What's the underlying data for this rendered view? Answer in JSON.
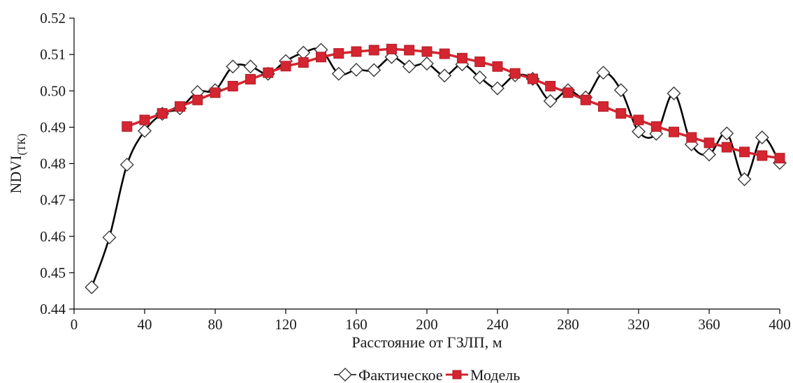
{
  "chart_data": {
    "type": "line",
    "xlabel": "Расстояние от ГЗЛП, м",
    "ylabel_main": "NDVI",
    "ylabel_sub": "(ТК)",
    "xlim": [
      0,
      400
    ],
    "ylim": [
      0.44,
      0.52
    ],
    "xticks": [
      0,
      40,
      80,
      120,
      160,
      200,
      240,
      280,
      320,
      360,
      400
    ],
    "yticks": [
      0.44,
      0.45,
      0.46,
      0.47,
      0.48,
      0.49,
      0.5,
      0.51,
      0.52
    ],
    "legend_position": "bottom",
    "grid": false,
    "series": [
      {
        "name": "Фактическое",
        "marker": "diamond",
        "color": "#000000",
        "smooth": true,
        "x": [
          10,
          20,
          30,
          40,
          50,
          60,
          70,
          80,
          90,
          100,
          110,
          120,
          130,
          140,
          150,
          160,
          170,
          180,
          190,
          200,
          210,
          220,
          230,
          240,
          250,
          260,
          270,
          280,
          290,
          300,
          310,
          320,
          330,
          340,
          350,
          360,
          370,
          380,
          390,
          400
        ],
        "y": [
          0.446,
          0.4597,
          0.4797,
          0.489,
          0.4937,
          0.4952,
          0.4997,
          0.5002,
          0.5067,
          0.5067,
          0.5047,
          0.5082,
          0.5105,
          0.5113,
          0.5047,
          0.5058,
          0.5057,
          0.5093,
          0.5067,
          0.5075,
          0.5042,
          0.5073,
          0.5037,
          0.5007,
          0.5043,
          0.5033,
          0.4972,
          0.5002,
          0.4982,
          0.505,
          0.5002,
          0.4888,
          0.4882,
          0.4993,
          0.4853,
          0.4825,
          0.4883,
          0.4757,
          0.4872,
          0.4802
        ]
      },
      {
        "name": "Модель",
        "marker": "square",
        "color": "#d42530",
        "smooth": false,
        "x": [
          30,
          40,
          50,
          60,
          70,
          80,
          90,
          100,
          110,
          120,
          130,
          140,
          150,
          160,
          170,
          180,
          190,
          200,
          210,
          220,
          230,
          240,
          250,
          260,
          270,
          280,
          290,
          300,
          310,
          320,
          330,
          340,
          350,
          360,
          370,
          380,
          390,
          400
        ],
        "y": [
          0.4902,
          0.492,
          0.4938,
          0.4957,
          0.4975,
          0.4995,
          0.5013,
          0.5032,
          0.505,
          0.5068,
          0.5078,
          0.5093,
          0.5103,
          0.5108,
          0.5112,
          0.5115,
          0.5112,
          0.5108,
          0.5102,
          0.509,
          0.508,
          0.5067,
          0.5048,
          0.5033,
          0.5013,
          0.4995,
          0.4975,
          0.4957,
          0.4938,
          0.492,
          0.4902,
          0.4887,
          0.4872,
          0.4857,
          0.4845,
          0.4832,
          0.4822,
          0.4815
        ]
      }
    ]
  }
}
